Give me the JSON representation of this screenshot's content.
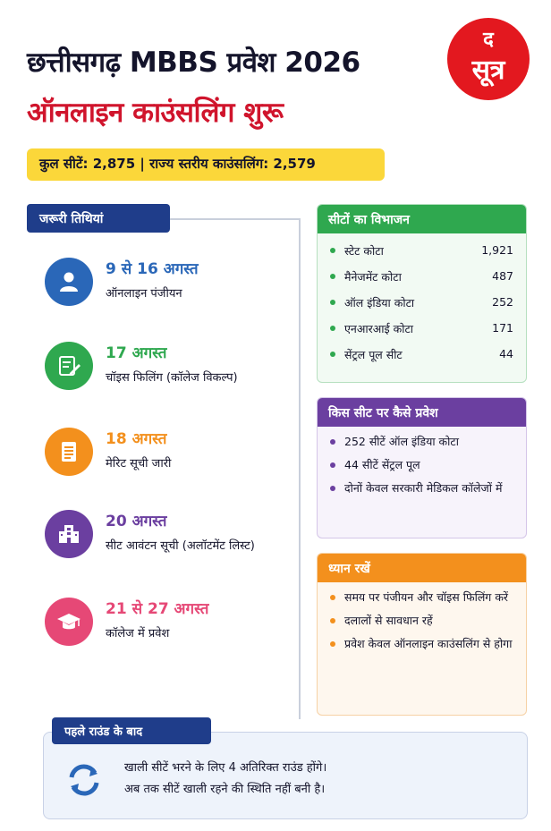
{
  "header": {
    "title_line1": "छत्तीसगढ़ MBBS प्रवेश 2026",
    "title_line2": "ऑनलाइन काउंसलिंग शुरू",
    "logo_top": "द",
    "logo_bottom": "सूत्र"
  },
  "seat_summary": "कुल सीटें: 2,875 | राज्य स्तरीय काउंसलिंग: 2,579",
  "dates": {
    "heading": "जरूरी तिथियां",
    "items": [
      {
        "date": "9 से 16 अगस्त",
        "desc": "ऑनलाइन पंजीयन",
        "icon": "user-icon",
        "color": "#2a67b8"
      },
      {
        "date": "17 अगस्त",
        "desc": "चॉइस फिलिंग (कॉलेज विकल्प)",
        "icon": "form-edit-icon",
        "color": "#2fa84f"
      },
      {
        "date": "18 अगस्त",
        "desc": "मेरिट सूची जारी",
        "icon": "document-list-icon",
        "color": "#f3901d"
      },
      {
        "date": "20 अगस्त",
        "desc": "सीट आवंटन सूची (अलॉटमेंट लिस्ट)",
        "icon": "building-icon",
        "color": "#6b3fa0"
      },
      {
        "date": "21 से 27 अगस्त",
        "desc": "कॉलेज में प्रवेश",
        "icon": "graduation-cap-icon",
        "color": "#e64876"
      }
    ]
  },
  "seat_breakup": {
    "heading": "सीटों का विभाजन",
    "color": "#2fa84f",
    "rows": [
      {
        "label": "स्टेट कोटा",
        "value": "1,921"
      },
      {
        "label": "मैनेजमेंट कोटा",
        "value": "487"
      },
      {
        "label": "ऑल इंडिया कोटा",
        "value": "252"
      },
      {
        "label": "एनआरआई कोटा",
        "value": "171"
      },
      {
        "label": "सेंट्रल पूल सीट",
        "value": "44"
      }
    ]
  },
  "admission": {
    "heading": "किस सीट पर कैसे प्रवेश",
    "color": "#6b3fa0",
    "items": [
      "252 सीटें ऑल इंडिया कोटा",
      "44 सीटें सेंट्रल पूल",
      "दोनों केवल सरकारी मेडिकल कॉलेजों में"
    ]
  },
  "note": {
    "heading": "ध्यान रखें",
    "color": "#f3901d",
    "items": [
      "समय पर पंजीयन और चॉइस फिलिंग करें",
      "दलालों से सावधान रहें",
      "प्रवेश केवल ऑनलाइन काउंसलिंग से होगा"
    ]
  },
  "after_round": {
    "heading": "पहले राउंड के बाद",
    "line1": "खाली सीटें भरने के लिए 4 अतिरिक्त राउंड होंगे।",
    "line2": "अब तक सीटें खाली रहने की स्थिति नहीं बनी है।",
    "icon": "refresh-icon"
  }
}
